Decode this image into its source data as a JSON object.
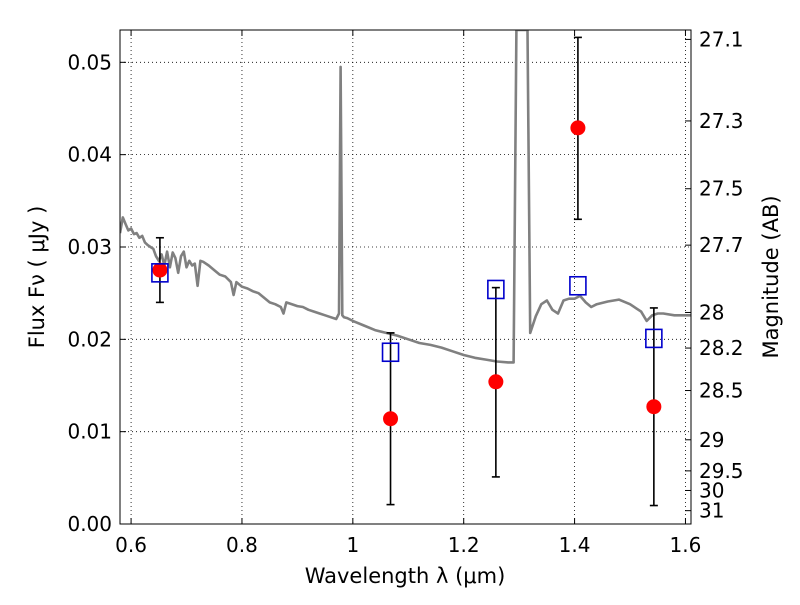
{
  "chart_data": {
    "type": "scatter",
    "title": "",
    "xlabel": "Wavelength  λ (μm)",
    "ylabel": "Flux  Fν  ( μJy )",
    "y2label": "Magnitude (AB)",
    "xlim": [
      0.58,
      1.61
    ],
    "ylim": [
      0.0,
      0.0535
    ],
    "grid": true,
    "xticks": [
      0.6,
      0.8,
      1.0,
      1.2,
      1.4,
      1.6
    ],
    "xtick_labels": [
      "0.6",
      "0.8",
      "1",
      "1.2",
      "1.4",
      "1.6"
    ],
    "yticks": [
      0.0,
      0.01,
      0.02,
      0.03,
      0.04,
      0.05
    ],
    "ytick_labels": [
      "0.00",
      "0.01",
      "0.02",
      "0.03",
      "0.04",
      "0.05"
    ],
    "y2ticks": [
      {
        "mag": 27.1,
        "label": "27.1"
      },
      {
        "mag": 27.3,
        "label": "27.3"
      },
      {
        "mag": 27.5,
        "label": "27.5"
      },
      {
        "mag": 27.7,
        "label": "27.7"
      },
      {
        "mag": 28.0,
        "label": "28"
      },
      {
        "mag": 28.2,
        "label": "28.2"
      },
      {
        "mag": 28.5,
        "label": "28.5"
      },
      {
        "mag": 29.0,
        "label": "29"
      },
      {
        "mag": 29.5,
        "label": "29.5"
      },
      {
        "mag": 30.0,
        "label": "30"
      },
      {
        "mag": 31.0,
        "label": "31"
      }
    ],
    "colors": {
      "observed": "#ff0000",
      "model": "#0000cc",
      "spectrum": "#808080",
      "errorbar": "#000000"
    },
    "series": [
      {
        "kind": "line",
        "x": [
          0.58,
          0.585,
          0.59,
          0.595,
          0.6,
          0.605,
          0.61,
          0.615,
          0.62,
          0.625,
          0.63,
          0.635,
          0.64,
          0.645,
          0.65,
          0.655,
          0.66,
          0.665,
          0.67,
          0.675,
          0.68,
          0.685,
          0.69,
          0.695,
          0.7,
          0.705,
          0.71,
          0.715,
          0.72,
          0.725,
          0.73,
          0.74,
          0.75,
          0.76,
          0.77,
          0.78,
          0.785,
          0.79,
          0.8,
          0.81,
          0.82,
          0.83,
          0.84,
          0.85,
          0.86,
          0.87,
          0.875,
          0.88,
          0.89,
          0.9,
          0.91,
          0.92,
          0.93,
          0.94,
          0.95,
          0.96,
          0.97,
          0.975,
          0.978,
          0.981,
          0.984,
          0.99,
          1.0,
          1.02,
          1.04,
          1.06,
          1.08,
          1.1,
          1.12,
          1.14,
          1.16,
          1.18,
          1.2,
          1.22,
          1.24,
          1.26,
          1.28,
          1.285,
          1.29,
          1.295,
          1.3,
          1.31,
          1.315,
          1.32,
          1.33,
          1.34,
          1.35,
          1.36,
          1.37,
          1.38,
          1.39,
          1.4,
          1.41,
          1.42,
          1.43,
          1.44,
          1.46,
          1.48,
          1.5,
          1.52,
          1.53,
          1.54,
          1.55,
          1.56,
          1.58,
          1.6,
          1.61
        ],
        "y": [
          0.0315,
          0.0332,
          0.0325,
          0.0318,
          0.032,
          0.0314,
          0.0315,
          0.031,
          0.0312,
          0.0305,
          0.0302,
          0.03,
          0.0298,
          0.029,
          0.0285,
          0.0292,
          0.028,
          0.0295,
          0.0278,
          0.0294,
          0.0288,
          0.0272,
          0.029,
          0.0295,
          0.0278,
          0.0285,
          0.028,
          0.0282,
          0.0258,
          0.0285,
          0.0284,
          0.028,
          0.0275,
          0.027,
          0.0268,
          0.0262,
          0.0248,
          0.0262,
          0.0257,
          0.0255,
          0.0252,
          0.025,
          0.0245,
          0.024,
          0.0238,
          0.0235,
          0.0228,
          0.024,
          0.0238,
          0.0236,
          0.0235,
          0.0232,
          0.023,
          0.0228,
          0.0226,
          0.0224,
          0.0222,
          0.0228,
          0.0495,
          0.0226,
          0.0224,
          0.0223,
          0.022,
          0.0215,
          0.021,
          0.0207,
          0.0204,
          0.02,
          0.0196,
          0.0194,
          0.0191,
          0.0187,
          0.0183,
          0.018,
          0.0178,
          0.0176,
          0.0175,
          0.0175,
          0.0175,
          0.0535,
          0.0535,
          0.0535,
          0.0535,
          0.0207,
          0.0225,
          0.0238,
          0.0242,
          0.0232,
          0.0228,
          0.0242,
          0.0244,
          0.0244,
          0.0247,
          0.024,
          0.0235,
          0.0238,
          0.0241,
          0.0243,
          0.0238,
          0.023,
          0.022,
          0.0226,
          0.0228,
          0.0228,
          0.0226,
          0.0226,
          0.0226
        ]
      },
      {
        "kind": "points-with-errors",
        "marker": "circle",
        "x": [
          0.652,
          1.068,
          1.258,
          1.406,
          1.543
        ],
        "y": [
          0.0275,
          0.0114,
          0.0154,
          0.0429,
          0.0127
        ],
        "yerr_low": [
          0.024,
          0.0021,
          0.0051,
          0.033,
          0.002
        ],
        "yerr_high": [
          0.031,
          0.0207,
          0.0256,
          0.0527,
          0.0234
        ]
      },
      {
        "kind": "points",
        "marker": "square",
        "x": [
          0.652,
          1.068,
          1.258,
          1.406,
          1.543
        ],
        "y": [
          0.0272,
          0.0186,
          0.0254,
          0.0258,
          0.0201
        ]
      }
    ]
  }
}
